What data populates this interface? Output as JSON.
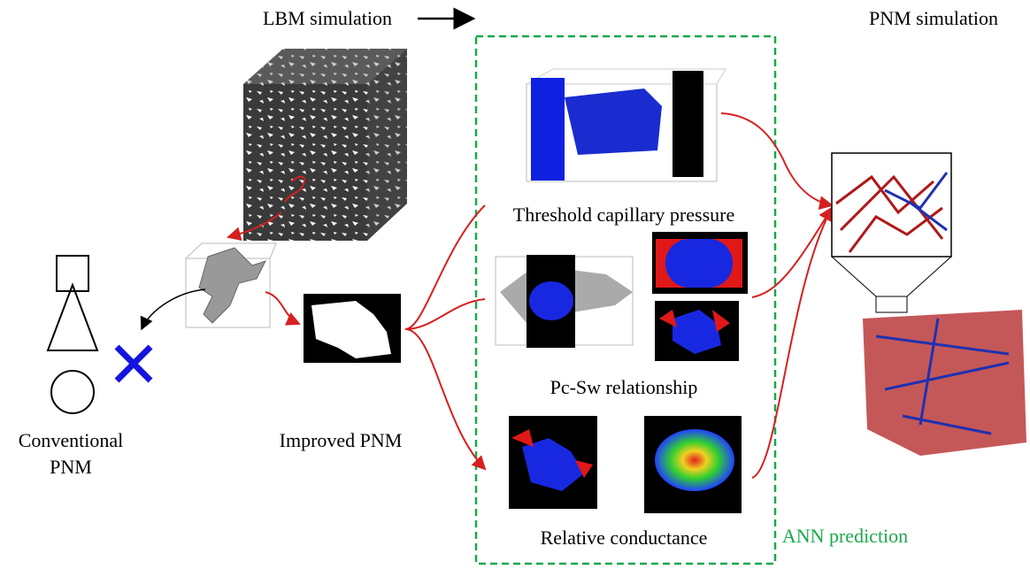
{
  "header": {
    "left": "LBM simulation",
    "right": "PNM simulation"
  },
  "panels": [
    {
      "label": "Threshold capillary pressure"
    },
    {
      "label": "Pc-Sw relationship"
    },
    {
      "label": "Relative conductance"
    }
  ],
  "ann_label": "ANN prediction",
  "conventional_label": "Conventional PNM",
  "improved_label": "Improved PNM"
}
